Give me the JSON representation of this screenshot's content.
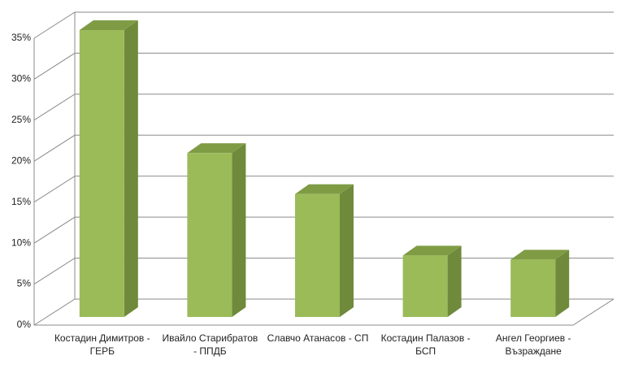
{
  "chart_data": {
    "type": "bar3d",
    "categories": [
      "Костадин Димитров  - ГЕРБ",
      "Ивайло Старибратов - ППДБ",
      "Славчо Атанасов - СП",
      "Костадин Палазов - БСП",
      "Ангел Георгиев - Възраждане"
    ],
    "values": [
      35,
      20,
      15,
      7.5,
      7
    ],
    "color": "#9bbb59",
    "ylim": [
      0,
      35
    ],
    "yticks": [
      {
        "value": 0,
        "label": "0%"
      },
      {
        "value": 5,
        "label": "5%"
      },
      {
        "value": 10,
        "label": "10%"
      },
      {
        "value": 15,
        "label": "15%"
      },
      {
        "value": 20,
        "label": "20%"
      },
      {
        "value": 25,
        "label": "25%"
      },
      {
        "value": 30,
        "label": "30%"
      },
      {
        "value": 35,
        "label": "35%"
      }
    ],
    "grid": true
  }
}
